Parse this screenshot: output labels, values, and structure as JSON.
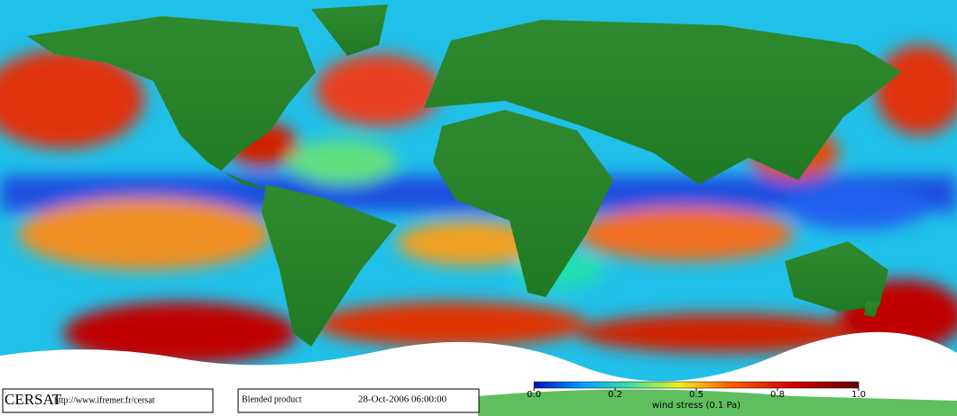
{
  "header": {
    "logo": "CERSAT",
    "url": "http://www.ifremer.fr/cersat"
  },
  "product": {
    "name": "Blended product",
    "date": "28-Oct-2006 06:00:00"
  },
  "colorbar": {
    "label": "wind stress (0.1 Pa)",
    "ticks": [
      {
        "value": 0,
        "label": "0.0"
      },
      {
        "value": 0.2,
        "label": "0.2"
      },
      {
        "value": 0.5,
        "label": "0.5"
      },
      {
        "value": 0.8,
        "label": "0.8"
      },
      {
        "value": 1,
        "label": "1.0"
      }
    ]
  }
}
